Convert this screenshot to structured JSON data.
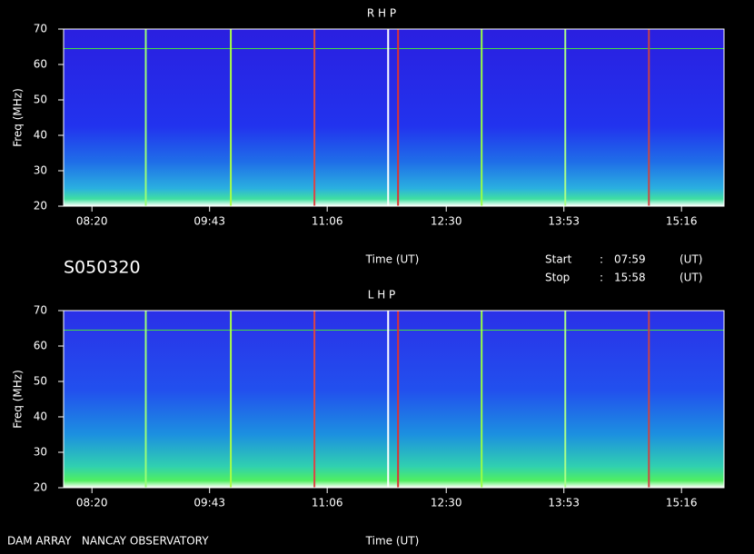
{
  "chart_data": [
    {
      "type": "spectrogram",
      "title": "R H P",
      "ylabel": "Freq (MHz)",
      "xlabel": "Time (UT)",
      "ylim": [
        20,
        70
      ],
      "yticks": [
        20,
        30,
        40,
        50,
        60,
        70
      ],
      "xlim": [
        480,
        946
      ],
      "xticks": [
        {
          "value": 500,
          "label": "08:20"
        },
        {
          "value": 583,
          "label": "09:43"
        },
        {
          "value": 666,
          "label": "11:06"
        },
        {
          "value": 750,
          "label": "12:30"
        },
        {
          "value": 833,
          "label": "13:53"
        },
        {
          "value": 916,
          "label": "15:16"
        }
      ],
      "hlines": [
        {
          "freq": 64.5,
          "color": "#44dd44"
        }
      ],
      "vlines": [
        {
          "time": 538,
          "color": "#99ff77"
        },
        {
          "time": 598,
          "color": "#aaff44"
        },
        {
          "time": 657,
          "color": "#dd4444"
        },
        {
          "time": 709,
          "color": "#ffffff"
        },
        {
          "time": 716,
          "color": "#dd3333"
        },
        {
          "time": 775,
          "color": "#99ff44"
        },
        {
          "time": 834,
          "color": "#aaff88"
        },
        {
          "time": 893,
          "color": "#cc4444"
        }
      ]
    },
    {
      "type": "spectrogram",
      "title": "L H P",
      "ylabel": "Freq (MHz)",
      "xlabel": "Time (UT)",
      "ylim": [
        20,
        70
      ],
      "yticks": [
        20,
        30,
        40,
        50,
        60,
        70
      ],
      "xlim": [
        480,
        946
      ],
      "xticks": [
        {
          "value": 500,
          "label": "08:20"
        },
        {
          "value": 583,
          "label": "09:43"
        },
        {
          "value": 666,
          "label": "11:06"
        },
        {
          "value": 750,
          "label": "12:30"
        },
        {
          "value": 833,
          "label": "13:53"
        },
        {
          "value": 916,
          "label": "15:16"
        }
      ],
      "hlines": [
        {
          "freq": 64.5,
          "color": "#44dd44"
        }
      ],
      "vlines": [
        {
          "time": 538,
          "color": "#99ff77"
        },
        {
          "time": 598,
          "color": "#aaff44"
        },
        {
          "time": 657,
          "color": "#dd4444"
        },
        {
          "time": 709,
          "color": "#ffffff"
        },
        {
          "time": 716,
          "color": "#dd3333"
        },
        {
          "time": 775,
          "color": "#99ff44"
        },
        {
          "time": 834,
          "color": "#aaff88"
        },
        {
          "time": 893,
          "color": "#cc4444"
        }
      ]
    }
  ],
  "header": {
    "id": "S050320",
    "start_label": "Start",
    "start_sep": ":",
    "start": "07:59",
    "start_unit": "(UT)",
    "stop_label": "Stop",
    "stop_sep": ":",
    "stop": "15:58",
    "stop_unit": "(UT)"
  },
  "footer": "DAM ARRAY   NANCAY OBSERVATORY"
}
